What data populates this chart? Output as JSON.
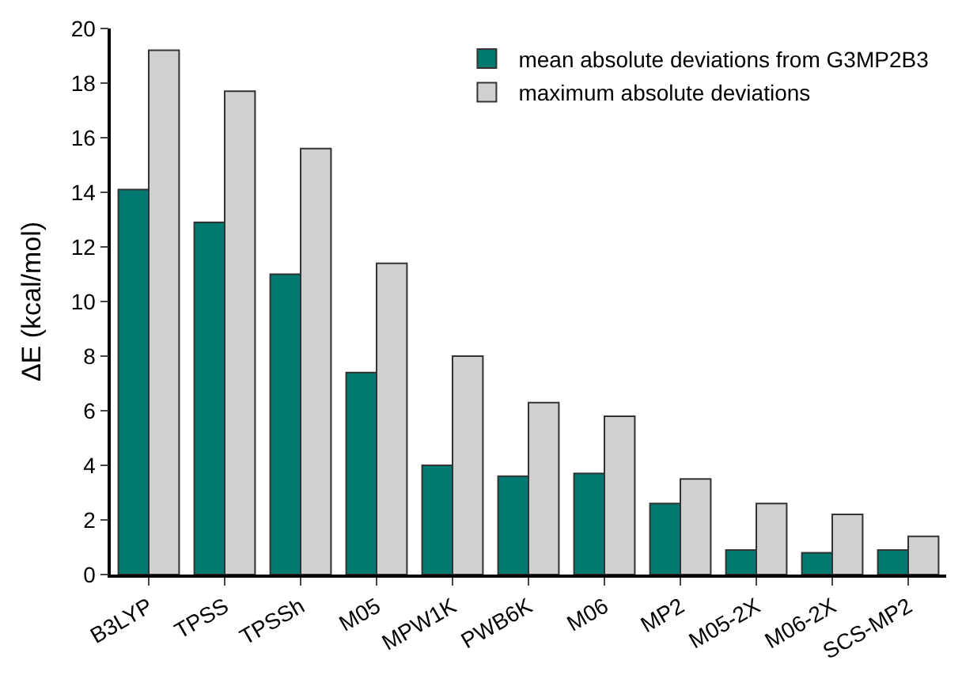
{
  "chart_data": {
    "type": "bar",
    "ylabel": "ΔE (kcal/mol)",
    "categories": [
      "B3LYP",
      "TPSS",
      "TPSSh",
      "M05",
      "MPW1K",
      "PWB6K",
      "M06",
      "MP2",
      "M05-2X",
      "M06-2X",
      "SCS-MP2"
    ],
    "series": [
      {
        "name": "mean absolute deviations from G3MP2B3",
        "color": "#007a70",
        "values": [
          14.1,
          12.9,
          11.0,
          7.4,
          4.0,
          3.6,
          3.7,
          2.6,
          0.9,
          0.8,
          0.9
        ]
      },
      {
        "name": "maximum absolute deviations",
        "color": "#d0d0d0",
        "values": [
          19.2,
          17.7,
          15.6,
          11.4,
          8.0,
          6.3,
          5.8,
          3.5,
          2.6,
          2.2,
          1.4
        ]
      }
    ],
    "ylim": [
      0,
      20
    ],
    "yticks": [
      0,
      2,
      4,
      6,
      8,
      10,
      12,
      14,
      16,
      18,
      20
    ],
    "grid": false,
    "legend": "top right"
  }
}
